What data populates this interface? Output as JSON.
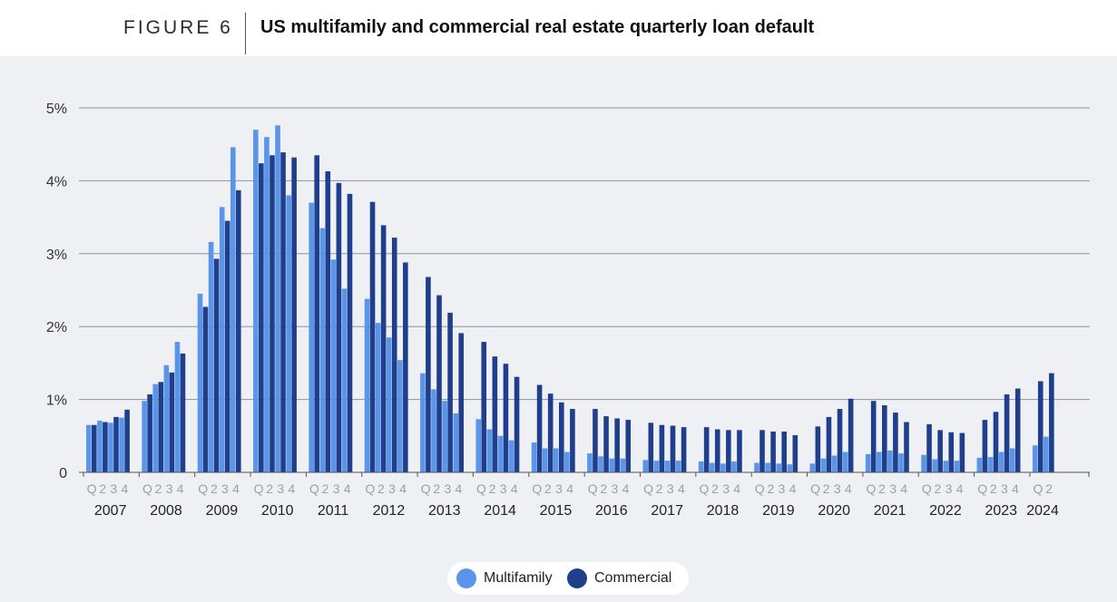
{
  "header": {
    "figure_label": "FIGURE 6",
    "title": "US multifamily and commercial real estate quarterly loan default"
  },
  "colors": {
    "multifamily": "#5b95ea",
    "commercial": "#1f3f8c",
    "grid": "#8a93a6",
    "axis_text": "#333333",
    "quarter_text": "#9aa0ab"
  },
  "chart_data": {
    "type": "bar",
    "title": "US multifamily and commercial real estate quarterly loan default",
    "xlabel": "",
    "ylabel": "",
    "ylim": [
      0,
      5
    ],
    "y_ticks": [
      0,
      1,
      2,
      3,
      4,
      5
    ],
    "y_tick_labels": [
      "0",
      "1%",
      "2%",
      "3%",
      "4%",
      "5%"
    ],
    "grid": true,
    "legend_position": "bottom-center",
    "quarter_labels": [
      "Q",
      "2",
      "3",
      "4"
    ],
    "years": [
      {
        "label": "2007",
        "multifamily": [
          0.65,
          0.71,
          0.68,
          0.75
        ],
        "commercial": [
          0.65,
          0.69,
          0.76,
          0.86
        ]
      },
      {
        "label": "2008",
        "multifamily": [
          0.98,
          1.21,
          1.47,
          1.79
        ],
        "commercial": [
          1.07,
          1.24,
          1.37,
          1.63
        ]
      },
      {
        "label": "2009",
        "multifamily": [
          2.45,
          3.16,
          3.64,
          4.46
        ],
        "commercial": [
          2.27,
          2.93,
          3.45,
          3.87
        ]
      },
      {
        "label": "2010",
        "multifamily": [
          4.7,
          4.6,
          4.76,
          3.8
        ],
        "commercial": [
          4.24,
          4.35,
          4.39,
          4.32
        ]
      },
      {
        "label": "2011",
        "multifamily": [
          3.7,
          3.35,
          2.92,
          2.52
        ],
        "commercial": [
          4.35,
          4.13,
          3.97,
          3.82
        ]
      },
      {
        "label": "2012",
        "multifamily": [
          2.38,
          2.05,
          1.85,
          1.54
        ],
        "commercial": [
          3.71,
          3.39,
          3.22,
          2.88
        ]
      },
      {
        "label": "2013",
        "multifamily": [
          1.36,
          1.14,
          0.98,
          0.81
        ],
        "commercial": [
          2.68,
          2.43,
          2.19,
          1.91
        ]
      },
      {
        "label": "2014",
        "multifamily": [
          0.73,
          0.59,
          0.5,
          0.44
        ],
        "commercial": [
          1.79,
          1.59,
          1.49,
          1.31
        ]
      },
      {
        "label": "2015",
        "multifamily": [
          0.41,
          0.33,
          0.33,
          0.28
        ],
        "commercial": [
          1.2,
          1.08,
          0.96,
          0.87
        ]
      },
      {
        "label": "2016",
        "multifamily": [
          0.26,
          0.22,
          0.19,
          0.19
        ],
        "commercial": [
          0.87,
          0.77,
          0.74,
          0.72
        ]
      },
      {
        "label": "2017",
        "multifamily": [
          0.17,
          0.16,
          0.16,
          0.16
        ],
        "commercial": [
          0.68,
          0.65,
          0.64,
          0.62
        ]
      },
      {
        "label": "2018",
        "multifamily": [
          0.15,
          0.13,
          0.12,
          0.15
        ],
        "commercial": [
          0.62,
          0.59,
          0.58,
          0.58
        ]
      },
      {
        "label": "2019",
        "multifamily": [
          0.13,
          0.13,
          0.12,
          0.11
        ],
        "commercial": [
          0.58,
          0.56,
          0.56,
          0.51
        ]
      },
      {
        "label": "2020",
        "multifamily": [
          0.12,
          0.19,
          0.23,
          0.28
        ],
        "commercial": [
          0.63,
          0.76,
          0.87,
          1.01
        ]
      },
      {
        "label": "2021",
        "multifamily": [
          0.25,
          0.28,
          0.3,
          0.26
        ],
        "commercial": [
          0.98,
          0.92,
          0.82,
          0.69
        ]
      },
      {
        "label": "2022",
        "multifamily": [
          0.24,
          0.18,
          0.16,
          0.16
        ],
        "commercial": [
          0.66,
          0.58,
          0.55,
          0.54
        ]
      },
      {
        "label": "2023",
        "multifamily": [
          0.2,
          0.21,
          0.28,
          0.33
        ],
        "commercial": [
          0.72,
          0.83,
          1.07,
          1.15
        ]
      },
      {
        "label": "2024",
        "multifamily": [
          0.37,
          0.49
        ],
        "commercial": [
          1.25,
          1.36
        ]
      }
    ],
    "series": [
      {
        "name": "Multifamily"
      },
      {
        "name": "Commercial"
      }
    ]
  },
  "legend": {
    "items": [
      {
        "label": "Multifamily"
      },
      {
        "label": "Commercial"
      }
    ]
  }
}
